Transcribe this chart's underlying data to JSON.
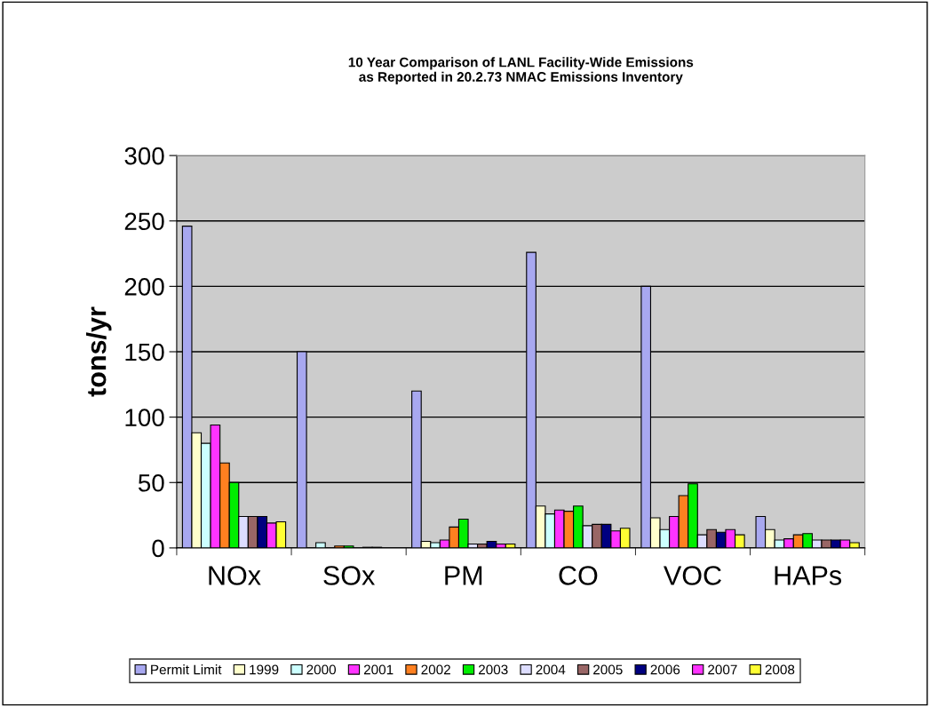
{
  "chart_data": {
    "type": "bar",
    "title": "10 Year Comparison of LANL Facility-Wide Emissions\nas Reported in 20.2.73 NMAC Emissions Inventory",
    "ylabel": "tons/yr",
    "categories": [
      "NOx",
      "SOx",
      "PM",
      "CO",
      "VOC",
      "HAPs"
    ],
    "series": [
      {
        "name": "Permit Limit",
        "color": "#a8a8f0",
        "values": [
          246,
          150,
          120,
          226,
          200,
          24
        ]
      },
      {
        "name": "1999",
        "color": "#ffffcc",
        "values": [
          88,
          null,
          5,
          32,
          23,
          14
        ]
      },
      {
        "name": "2000",
        "color": "#ccffff",
        "values": [
          80,
          4,
          4,
          26,
          14,
          6
        ]
      },
      {
        "name": "2001",
        "color": "#ff33ff",
        "values": [
          94,
          null,
          6,
          29,
          24,
          7
        ]
      },
      {
        "name": "2002",
        "color": "#ff8020",
        "values": [
          65,
          1.5,
          16,
          28,
          40,
          10
        ]
      },
      {
        "name": "2003",
        "color": "#00ee00",
        "values": [
          50,
          1.5,
          22,
          32,
          49,
          11
        ]
      },
      {
        "name": "2004",
        "color": "#ddddff",
        "values": [
          24,
          null,
          3,
          17,
          10,
          6
        ]
      },
      {
        "name": "2005",
        "color": "#996666",
        "values": [
          24,
          0.5,
          3,
          18,
          14,
          6
        ]
      },
      {
        "name": "2006",
        "color": "#000080",
        "values": [
          24,
          0.5,
          5,
          18,
          12,
          6
        ]
      },
      {
        "name": "2007",
        "color": "#ff33ff",
        "values": [
          19,
          null,
          3,
          13,
          14,
          6
        ]
      },
      {
        "name": "2008",
        "color": "#ffff33",
        "values": [
          20,
          null,
          3,
          15,
          10,
          4
        ]
      }
    ],
    "ylim": [
      0,
      300
    ],
    "yticks": [
      0,
      50,
      100,
      150,
      200,
      250,
      300
    ],
    "grid": "y",
    "legend": "bottom"
  }
}
